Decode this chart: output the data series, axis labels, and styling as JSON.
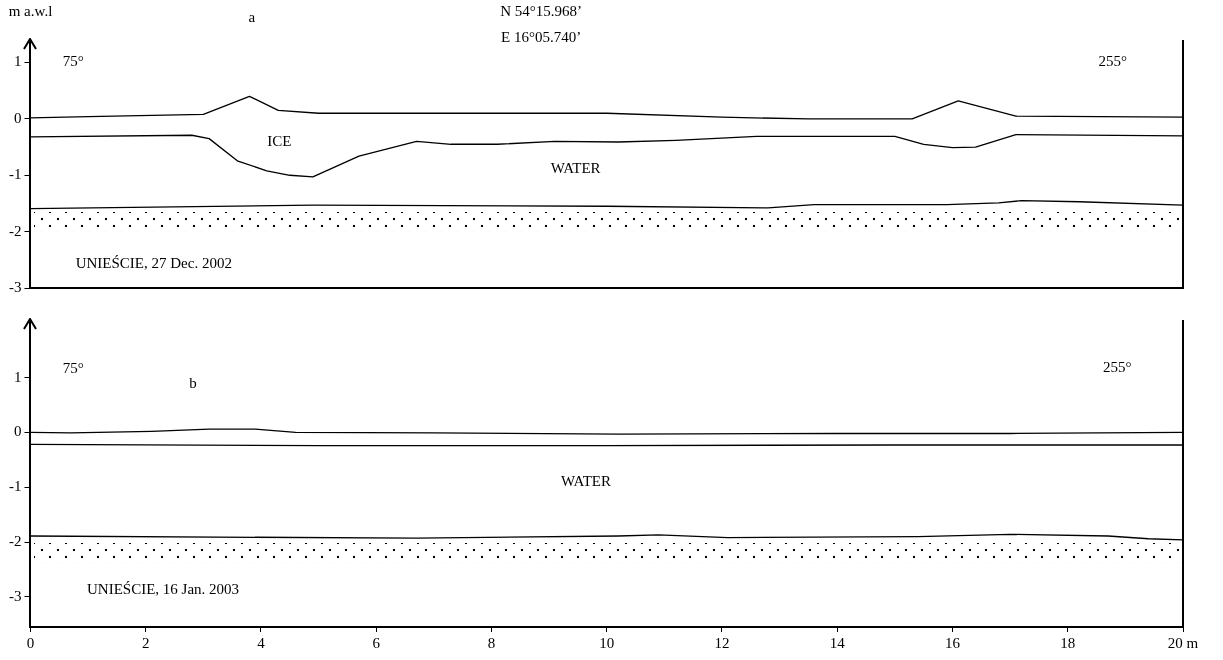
{
  "chart_data": [
    {
      "type": "line",
      "title": "a",
      "ylabel": "m a.w.l",
      "series": [
        {
          "color": "#000000",
          "x": [
            0,
            1,
            3,
            3.8,
            4.3,
            5,
            8,
            10,
            12,
            13.5,
            15.3,
            16.1,
            17.1,
            20
          ],
          "values": [
            0.02,
            0.04,
            0.08,
            0.4,
            0.15,
            0.1,
            0.1,
            0.1,
            0.03,
            0,
            0,
            0.32,
            0.05,
            0.03
          ]
        },
        {
          "color": "#000000",
          "x": [
            0,
            2.8,
            3.1,
            3.6,
            4.1,
            4.5,
            4.9,
            5.7,
            6.7,
            7.3,
            8.1,
            9.1,
            10.2,
            11.2,
            12.6,
            15,
            15.5,
            16,
            16.4,
            17.1,
            20
          ],
          "values": [
            -0.32,
            -0.29,
            -0.35,
            -0.75,
            -0.92,
            -1,
            -1.03,
            -0.66,
            -0.4,
            -0.45,
            -0.45,
            -0.4,
            -0.41,
            -0.38,
            -0.31,
            -0.31,
            -0.45,
            -0.51,
            -0.5,
            -0.28,
            -0.3
          ]
        },
        {
          "color": "#000000",
          "x": [
            0,
            4.9,
            10,
            12.8,
            13.6,
            15.9,
            16.8,
            17.2,
            18.2,
            20
          ],
          "values": [
            -1.59,
            -1.53,
            -1.55,
            -1.58,
            -1.52,
            -1.52,
            -1.49,
            -1.45,
            -1.47,
            -1.53
          ]
        }
      ],
      "xlim": [
        0,
        20
      ],
      "ylim": [
        -3,
        1.4
      ],
      "yticks": [
        -3,
        -2,
        -1,
        0,
        1
      ],
      "tick_labels": "y",
      "annotations": [
        "N 54°15.968’",
        "E 16°05.740’",
        "75°",
        "255°",
        "ICE",
        "WATER",
        "UNIEŚCIE, 27 Dec. 2002"
      ]
    },
    {
      "type": "line",
      "title": "b",
      "series": [
        {
          "color": "#000000",
          "x": [
            0,
            0.7,
            2.1,
            3.1,
            3.9,
            4.6,
            7,
            10.2,
            14,
            17,
            20
          ],
          "values": [
            0,
            -0.01,
            0.02,
            0.06,
            0.06,
            0,
            -0.01,
            -0.03,
            -0.02,
            -0.02,
            0
          ]
        },
        {
          "color": "#000000",
          "x": [
            0,
            5,
            10,
            15,
            20
          ],
          "values": [
            -0.22,
            -0.24,
            -0.24,
            -0.23,
            -0.23
          ]
        },
        {
          "color": "#000000",
          "x": [
            0,
            6.7,
            10.2,
            10.9,
            12.1,
            15.4,
            17,
            18.7,
            19.4,
            20
          ],
          "values": [
            -1.89,
            -1.93,
            -1.89,
            -1.87,
            -1.92,
            -1.9,
            -1.86,
            -1.89,
            -1.94,
            -1.96
          ]
        }
      ],
      "xlim": [
        0,
        20
      ],
      "xticks": [
        0,
        2,
        4,
        6,
        8,
        10,
        12,
        14,
        16,
        18,
        {
          "value": 20,
          "label": "20 m"
        }
      ],
      "ylim": [
        -3.55,
        2.05
      ],
      "yticks": [
        -3,
        -2,
        -1,
        0,
        1
      ],
      "annotations": [
        "75°",
        "255°",
        "WATER",
        "UNIEŚCIE, 16 Jan. 2003"
      ]
    }
  ]
}
